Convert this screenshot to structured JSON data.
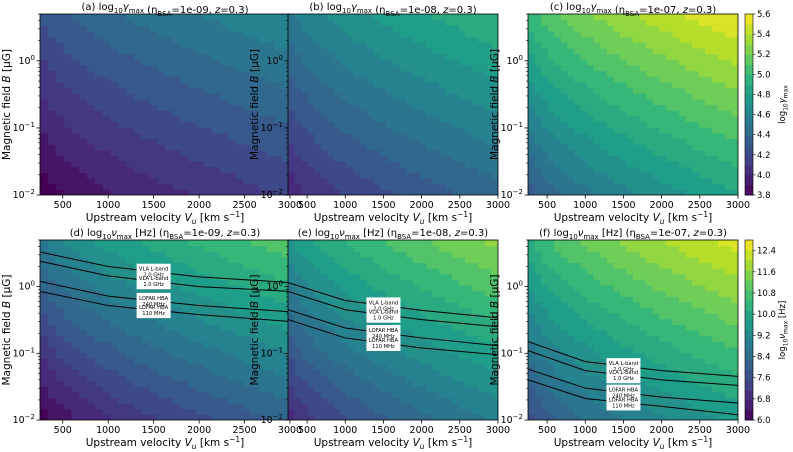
{
  "chart_data": [
    {
      "type": "heatmap",
      "panel": "a",
      "title": "(a) log$_{10}$γ$_{max}$ (η$_{BSA}$=1e-09, z=0.3)",
      "title_main": "(a) log",
      "title_sub": "10",
      "title_sym": "γ",
      "title_sym_sub": "max",
      "title_eta": " (η",
      "title_eta_sub": "BSA",
      "title_rest": "=1e-09, ",
      "title_z": "z",
      "title_end": "=0.3)",
      "xlabel": "Upstream velocity V_u [km s⁻¹]",
      "ylabel": "Magnetic field B [μG]",
      "xlim": [
        250,
        3000
      ],
      "ylim": [
        0.01,
        5
      ],
      "xticks": [
        "500",
        "1000",
        "1500",
        "2000",
        "2500",
        "3000"
      ],
      "yticks": [
        "10^0",
        "10^-1",
        "10^-2"
      ],
      "value_range": [
        3.8,
        4.7
      ]
    },
    {
      "type": "heatmap",
      "panel": "b",
      "title_main": "(b) log",
      "title_sub": "10",
      "title_sym": "γ",
      "title_sym_sub": "max",
      "title_eta": " (η",
      "title_eta_sub": "BSA",
      "title_rest": "=1e-08, ",
      "title_z": "z",
      "title_end": "=0.3)",
      "xlabel": "Upstream velocity V_u [km s⁻¹]",
      "ylabel": "Magnetic field B [μG]",
      "xlim": [
        250,
        3000
      ],
      "ylim": [
        0.01,
        5
      ],
      "xticks": [
        "500",
        "1000",
        "1500",
        "2000",
        "2500",
        "3000"
      ],
      "yticks": [
        "10^0",
        "10^-1",
        "10^-2"
      ],
      "value_range": [
        4.0,
        5.0
      ]
    },
    {
      "type": "heatmap",
      "panel": "c",
      "title_main": "(c) log",
      "title_sub": "10",
      "title_sym": "γ",
      "title_sym_sub": "max",
      "title_eta": " (η",
      "title_eta_sub": "BSA",
      "title_rest": "=1e-07, ",
      "title_z": "z",
      "title_end": "=0.3)",
      "xlabel": "Upstream velocity V_u [km s⁻¹]",
      "ylabel": "Magnetic field B [μG]",
      "xlim": [
        250,
        3000
      ],
      "ylim": [
        0.01,
        5
      ],
      "xticks": [
        "500",
        "1000",
        "1500",
        "2000",
        "2500",
        "3000"
      ],
      "yticks": [
        "10^0",
        "10^-1",
        "10^-2"
      ],
      "value_range": [
        4.3,
        5.6
      ],
      "colorbar": {
        "label": "log10 γmax",
        "ticks": [
          "5.6",
          "5.4",
          "5.2",
          "5.0",
          "4.8",
          "4.6",
          "4.4",
          "4.2",
          "4.0",
          "3.8"
        ],
        "range": [
          3.8,
          5.6
        ]
      }
    },
    {
      "type": "heatmap",
      "panel": "d",
      "title_main": "(d) log",
      "title_sub": "10",
      "title_sym": "ν",
      "title_sym_sub": "max",
      "title_hz": " [Hz]",
      "title_eta": " (η",
      "title_eta_sub": "BSA",
      "title_rest": "=1e-09, ",
      "title_z": "z",
      "title_end": "=0.3)",
      "xlabel": "Upstream velocity V_u [km s⁻¹]",
      "ylabel": "Magnetic field B [μG]",
      "xlim": [
        250,
        3000
      ],
      "ylim": [
        0.01,
        5
      ],
      "xticks": [
        "500",
        "1000",
        "1500",
        "2000",
        "2500",
        "3000"
      ],
      "yticks": [
        "10^0",
        "10^-1",
        "10^-2"
      ],
      "value_range": [
        6.0,
        11.2
      ],
      "contours": [
        {
          "label": [
            "VLA L-band",
            "2.0 GHz"
          ],
          "B_at": [
            [
              250,
              3.3
            ],
            [
              1000,
              2.0
            ],
            [
              2000,
              1.4
            ],
            [
              3000,
              1.15
            ]
          ]
        },
        {
          "label": [
            "VLA L-band",
            "1.0 GHz"
          ],
          "B_at": [
            [
              250,
              2.4
            ],
            [
              1000,
              1.45
            ],
            [
              2000,
              1.0
            ],
            [
              3000,
              0.85
            ]
          ]
        },
        {
          "label": [
            "LOFAR HBA",
            "240 MHz"
          ],
          "B_at": [
            [
              250,
              1.2
            ],
            [
              1000,
              0.72
            ],
            [
              2000,
              0.52
            ],
            [
              3000,
              0.42
            ]
          ]
        },
        {
          "label": [
            "LOFAR HBA",
            "110 MHz"
          ],
          "B_at": [
            [
              250,
              0.85
            ],
            [
              1000,
              0.52
            ],
            [
              2000,
              0.38
            ],
            [
              3000,
              0.3
            ]
          ]
        }
      ]
    },
    {
      "type": "heatmap",
      "panel": "e",
      "title_main": "(e) log",
      "title_sub": "10",
      "title_sym": "ν",
      "title_sym_sub": "max",
      "title_hz": " [Hz]",
      "title_eta": " (η",
      "title_eta_sub": "BSA",
      "title_rest": "=1e-08, ",
      "title_z": "z",
      "title_end": "=0.3)",
      "xlabel": "Upstream velocity V_u [km s⁻¹]",
      "ylabel": "Magnetic field B [μG]",
      "xlim": [
        250,
        3000
      ],
      "ylim": [
        0.01,
        5
      ],
      "xticks": [
        "500",
        "1000",
        "1500",
        "2000",
        "2500",
        "3000"
      ],
      "yticks": [
        "10^0",
        "10^-1",
        "10^-2"
      ],
      "value_range": [
        6.8,
        11.8
      ],
      "contours": [
        {
          "label": [
            "VLA L-band",
            "2.0 GHz"
          ],
          "B_at": [
            [
              250,
              1.15
            ],
            [
              1000,
              0.62
            ],
            [
              2000,
              0.44
            ],
            [
              3000,
              0.34
            ]
          ]
        },
        {
          "label": [
            "VLA L-band",
            "1.0 GHz"
          ],
          "B_at": [
            [
              250,
              0.85
            ],
            [
              1000,
              0.45
            ],
            [
              2000,
              0.32
            ],
            [
              3000,
              0.25
            ]
          ]
        },
        {
          "label": [
            "LOFAR HBA",
            "240 MHz"
          ],
          "B_at": [
            [
              250,
              0.45
            ],
            [
              1000,
              0.24
            ],
            [
              2000,
              0.17
            ],
            [
              3000,
              0.13
            ]
          ]
        },
        {
          "label": [
            "LOFAR HBA",
            "110 MHz"
          ],
          "B_at": [
            [
              250,
              0.32
            ],
            [
              1000,
              0.17
            ],
            [
              2000,
              0.12
            ],
            [
              3000,
              0.095
            ]
          ]
        }
      ]
    },
    {
      "type": "heatmap",
      "panel": "f",
      "title_main": "(f) log",
      "title_sub": "10",
      "title_sym": "ν",
      "title_sym_sub": "max",
      "title_hz": " [Hz]",
      "title_eta": " (η",
      "title_eta_sub": "BSA",
      "title_rest": "=1e-07, ",
      "title_z": "z",
      "title_end": "=0.3)",
      "xlabel": "Upstream velocity V_u [km s⁻¹]",
      "ylabel": "Magnetic field B [μG]",
      "xlim": [
        250,
        3000
      ],
      "ylim": [
        0.01,
        5
      ],
      "xticks": [
        "500",
        "1000",
        "1500",
        "2000",
        "2500",
        "3000"
      ],
      "yticks": [
        "10^0",
        "10^-1",
        "10^-2"
      ],
      "value_range": [
        7.6,
        12.6
      ],
      "colorbar": {
        "label": "log10 νmax [Hz]",
        "ticks": [
          "12.4",
          "11.6",
          "10.8",
          "10.0",
          "9.2",
          "8.4",
          "7.6",
          "6.8",
          "6.0"
        ],
        "range": [
          6.0,
          12.8
        ]
      },
      "contours": [
        {
          "label": [
            "VLA L-band",
            "2.0 GHz"
          ],
          "B_at": [
            [
              250,
              0.15
            ],
            [
              1000,
              0.075
            ],
            [
              2000,
              0.055
            ],
            [
              3000,
              0.045
            ]
          ]
        },
        {
          "label": [
            "VLA L-band",
            "1.0 GHz"
          ],
          "B_at": [
            [
              250,
              0.11
            ],
            [
              1000,
              0.055
            ],
            [
              2000,
              0.04
            ],
            [
              3000,
              0.033
            ]
          ]
        },
        {
          "label": [
            "LOFAR HBA",
            "240 MHz"
          ],
          "B_at": [
            [
              250,
              0.058
            ],
            [
              1000,
              0.03
            ],
            [
              2000,
              0.022
            ],
            [
              3000,
              0.018
            ]
          ]
        },
        {
          "label": [
            "LOFAR HBA",
            "110 MHz"
          ],
          "B_at": [
            [
              250,
              0.04
            ],
            [
              1000,
              0.021
            ],
            [
              2000,
              0.016
            ],
            [
              3000,
              0.012
            ]
          ]
        }
      ]
    }
  ],
  "axis_text": {
    "xlabel_main": "Upstream velocity ",
    "xlabel_var": "V",
    "xlabel_sub": "u",
    "xlabel_unit": " [km s",
    "xlabel_exp": "−1",
    "xlabel_close": "]",
    "ylabel_main": "Magnetic field ",
    "ylabel_var": "B",
    "ylabel_unit": " [μG]",
    "ytick_base": "10",
    "ytick_exps": [
      "0",
      "−1",
      "−2"
    ],
    "cbar_top_main": "log",
    "cbar_top_sub": "10",
    "cbar_top_sym": "γ",
    "cbar_top_sym_sub": "max",
    "cbar_bot_main": "log",
    "cbar_bot_sub": "10",
    "cbar_bot_sym": "ν",
    "cbar_bot_sym_sub": "max",
    "cbar_bot_unit": " [Hz]"
  },
  "colors": {
    "viridis": [
      "#440154",
      "#482878",
      "#3e4989",
      "#31688e",
      "#26828e",
      "#1f9e89",
      "#35b779",
      "#6ece58",
      "#b5de2b",
      "#fde725"
    ]
  }
}
